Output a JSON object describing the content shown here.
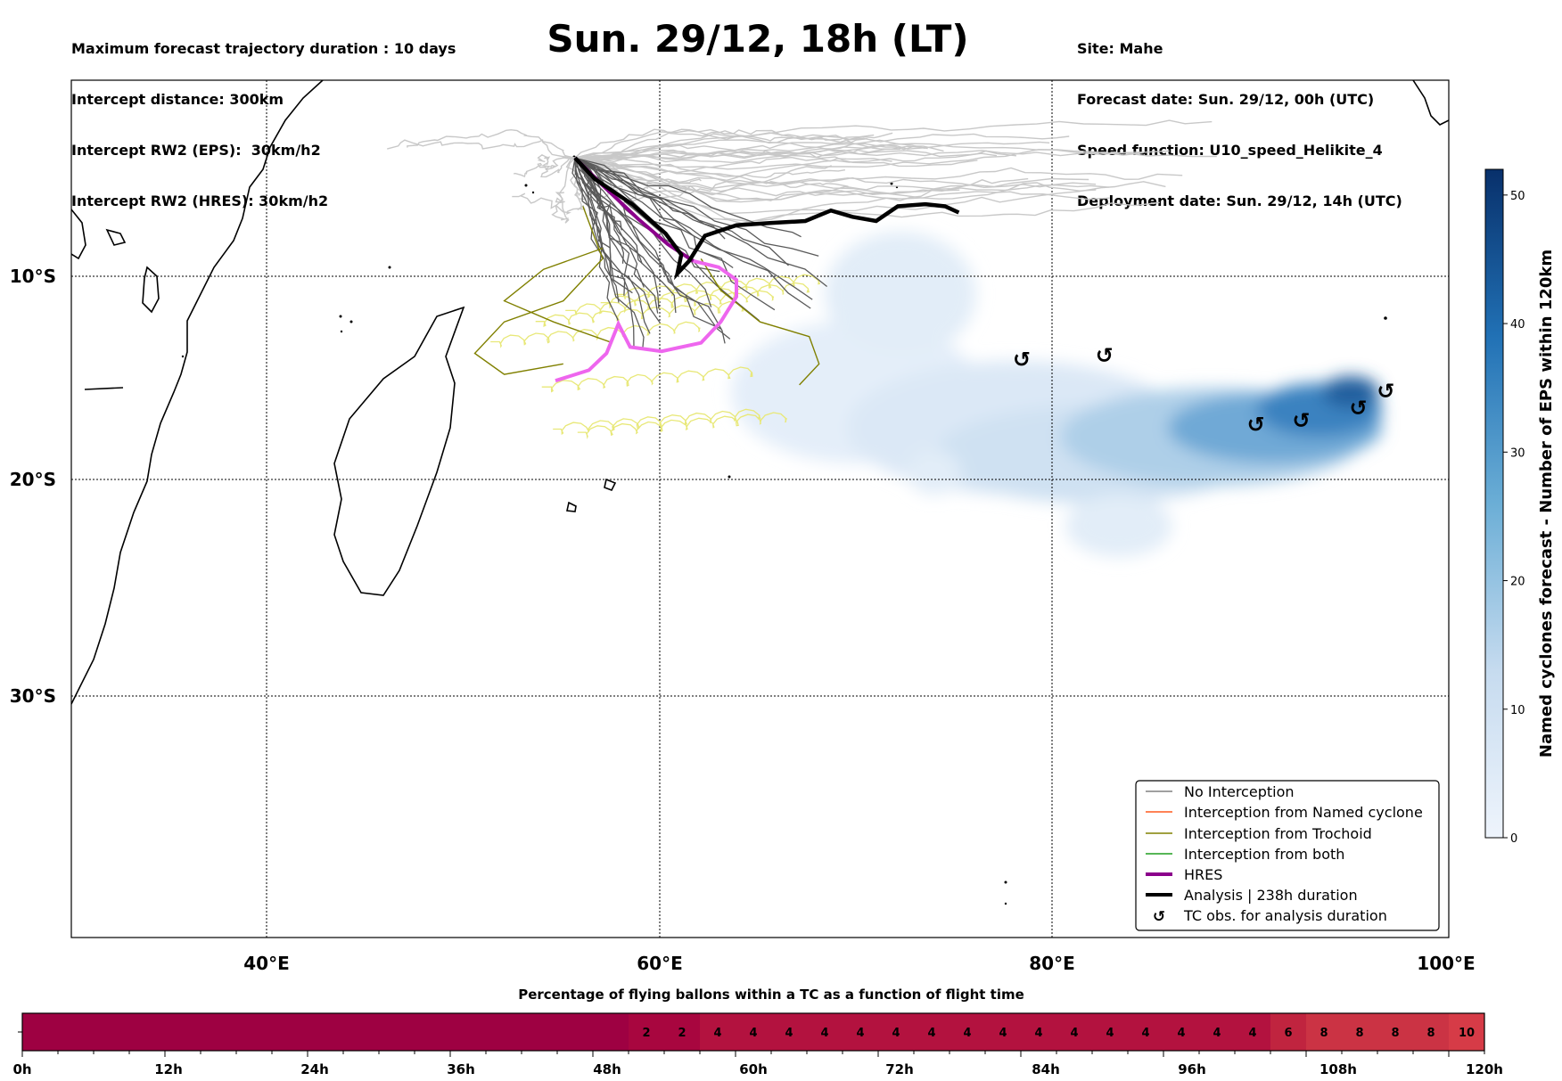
{
  "header": {
    "title": "Sun. 29/12, 18h (LT)",
    "left_lines": [
      "Maximum forecast trajectory duration : 10 days",
      "Intercept distance: 300km",
      "Intercept RW2 (EPS):  30km/h2",
      "Intercept RW2 (HRES): 30km/h2"
    ],
    "right_lines": [
      "Site: Mahe",
      "Forecast date: Sun. 29/12, 00h (UTC)",
      "Speed function: U10_speed_Helikite_4",
      "Deployment date: Sun. 29/12, 14h (UTC)"
    ]
  },
  "map": {
    "lon_range": [
      30,
      100
    ],
    "lat_range": [
      -41.8,
      -1.0
    ],
    "lon_ticks": [
      {
        "v": 40,
        "label": "40°E"
      },
      {
        "v": 60,
        "label": "60°E"
      },
      {
        "v": 80,
        "label": "80°E"
      },
      {
        "v": 100,
        "label": "100°E"
      }
    ],
    "lat_ticks": [
      {
        "v": -10,
        "label": "10°S"
      },
      {
        "v": -20,
        "label": "20°S"
      },
      {
        "v": -30,
        "label": "30°S"
      }
    ],
    "colors": {
      "no_interception": "#5a5a5a",
      "named_cyclone": "#ff5a1f",
      "trochoid": "#808000",
      "both": "#1e9e1e",
      "hres": "#8b008b",
      "analysis": "#000000",
      "eps_faint": "#c8c8c8",
      "trochoid_faint": "#e8e878",
      "hres_alt": "#ee66ee"
    },
    "legend": [
      {
        "label": "No Interception",
        "style": "no_interception"
      },
      {
        "label": "Interception from Named cyclone",
        "style": "named_cyclone"
      },
      {
        "label": "Interception from Trochoid",
        "style": "trochoid"
      },
      {
        "label": "Interception from both",
        "style": "both"
      },
      {
        "label": "HRES",
        "style": "hres"
      },
      {
        "label": "Analysis | 238h duration",
        "style": "analysis"
      },
      {
        "label": "TC obs. for analysis duration",
        "style": "tc_symbol",
        "icon": "cyclone-icon"
      }
    ],
    "analysis_track": [
      [
        55.6,
        -4.7
      ],
      [
        56.6,
        -5.7
      ],
      [
        58.5,
        -6.9
      ],
      [
        60.2,
        -8.3
      ],
      [
        61.0,
        -9.3
      ],
      [
        60.8,
        -10.2
      ],
      [
        61.4,
        -9.6
      ],
      [
        62.2,
        -8.4
      ],
      [
        63.8,
        -7.9
      ],
      [
        65.5,
        -7.8
      ],
      [
        67.3,
        -7.7
      ],
      [
        68.6,
        -7.2
      ],
      [
        69.7,
        -7.5
      ],
      [
        70.9,
        -7.7
      ],
      [
        72.0,
        -7.0
      ],
      [
        73.4,
        -6.9
      ],
      [
        74.4,
        -7.0
      ],
      [
        75.1,
        -7.3
      ]
    ],
    "hres_track": [
      [
        55.6,
        -4.7
      ],
      [
        57.0,
        -6.0
      ],
      [
        58.8,
        -7.6
      ],
      [
        60.3,
        -8.8
      ],
      [
        61.6,
        -9.6
      ],
      [
        62.9,
        -9.9
      ],
      [
        63.8,
        -10.5
      ],
      [
        63.8,
        -11.3
      ],
      [
        63.0,
        -12.5
      ],
      [
        62.0,
        -13.5
      ],
      [
        60.0,
        -13.9
      ],
      [
        58.4,
        -13.7
      ],
      [
        57.8,
        -12.6
      ],
      [
        57.2,
        -14.0
      ],
      [
        56.3,
        -14.8
      ],
      [
        54.6,
        -15.3
      ]
    ],
    "tc_obs": [
      [
        78.3,
        -14.3
      ],
      [
        82.5,
        -14.1
      ],
      [
        90.2,
        -17.4
      ],
      [
        92.5,
        -17.2
      ],
      [
        95.4,
        -16.6
      ],
      [
        96.8,
        -15.8
      ]
    ],
    "named_cyclone_density": {
      "colorbar_label": "Named cyclones forecast - Number of EPS within 120km",
      "ticks": [
        0,
        10,
        20,
        30,
        40,
        50
      ],
      "max": 52,
      "color_low": "#eaf2fb",
      "color_high": "#08306b"
    }
  },
  "timeline": {
    "title": "Percentage of flying ballons within a TC as a function of flight time",
    "tick_labels": [
      "0h",
      "12h",
      "24h",
      "36h",
      "48h",
      "60h",
      "72h",
      "84h",
      "96h",
      "108h",
      "120h"
    ],
    "cells": [
      0,
      0,
      0,
      0,
      0,
      0,
      0,
      0,
      0,
      0,
      0,
      0,
      0,
      0,
      0,
      0,
      0,
      2,
      2,
      4,
      4,
      4,
      4,
      4,
      4,
      4,
      4,
      4,
      4,
      4,
      4,
      4,
      4,
      4,
      4,
      6,
      8,
      8,
      8,
      8,
      10
    ]
  }
}
